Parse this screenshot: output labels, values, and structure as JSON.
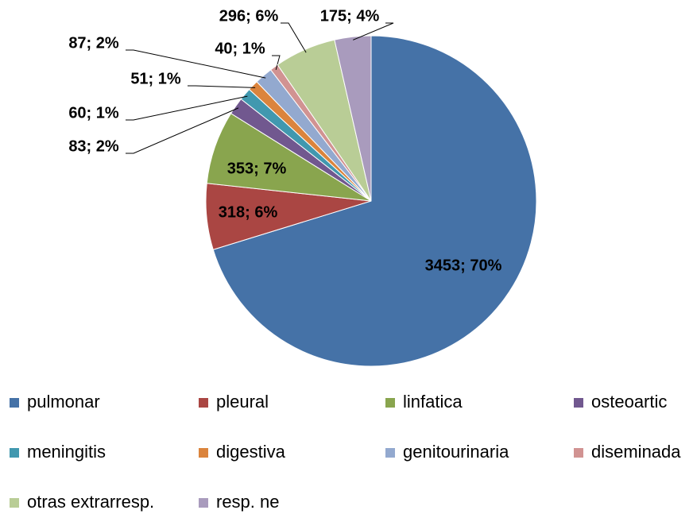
{
  "chart_data": {
    "type": "pie",
    "categories": [
      "pulmonar",
      "pleural",
      "linfatica",
      "osteoartic",
      "meningitis",
      "digestiva",
      "genitourinaria",
      "diseminada",
      "otras extrarresp.",
      "resp. ne"
    ],
    "values": [
      3453,
      318,
      353,
      83,
      60,
      51,
      87,
      40,
      296,
      175
    ],
    "value_labels": [
      "3453; 70%",
      "318; 6%",
      "353; 7%",
      "83; 2%",
      "60; 1%",
      "51; 1%",
      "87; 2%",
      "40; 1%",
      "296; 6%",
      "175; 4%"
    ],
    "colors": [
      "#4572a7",
      "#aa4643",
      "#89a54e",
      "#71588f",
      "#4198af",
      "#db843d",
      "#93a9cf",
      "#d19392",
      "#b9cd96",
      "#a99bbd"
    ],
    "legend": "bottom"
  }
}
